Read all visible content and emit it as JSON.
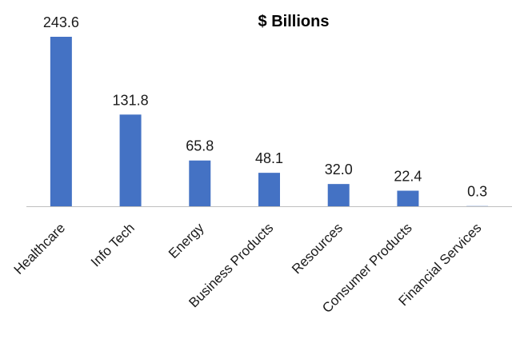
{
  "chart_data": {
    "type": "bar",
    "title": "$ Billions",
    "categories": [
      "Healthcare",
      "Info Tech",
      "Energy",
      "Business Products",
      "Resources",
      "Consumer Products",
      "Financial Services"
    ],
    "values": [
      243.6,
      131.8,
      65.8,
      48.1,
      32.0,
      22.4,
      0.3
    ],
    "data_labels": [
      "243.6",
      "131.8",
      "65.8",
      "48.1",
      "32.0",
      "22.4",
      "0.3"
    ],
    "bar_color": "#4472C4",
    "axis_color": "#BFBFBF",
    "grid": false,
    "legend": "none"
  }
}
